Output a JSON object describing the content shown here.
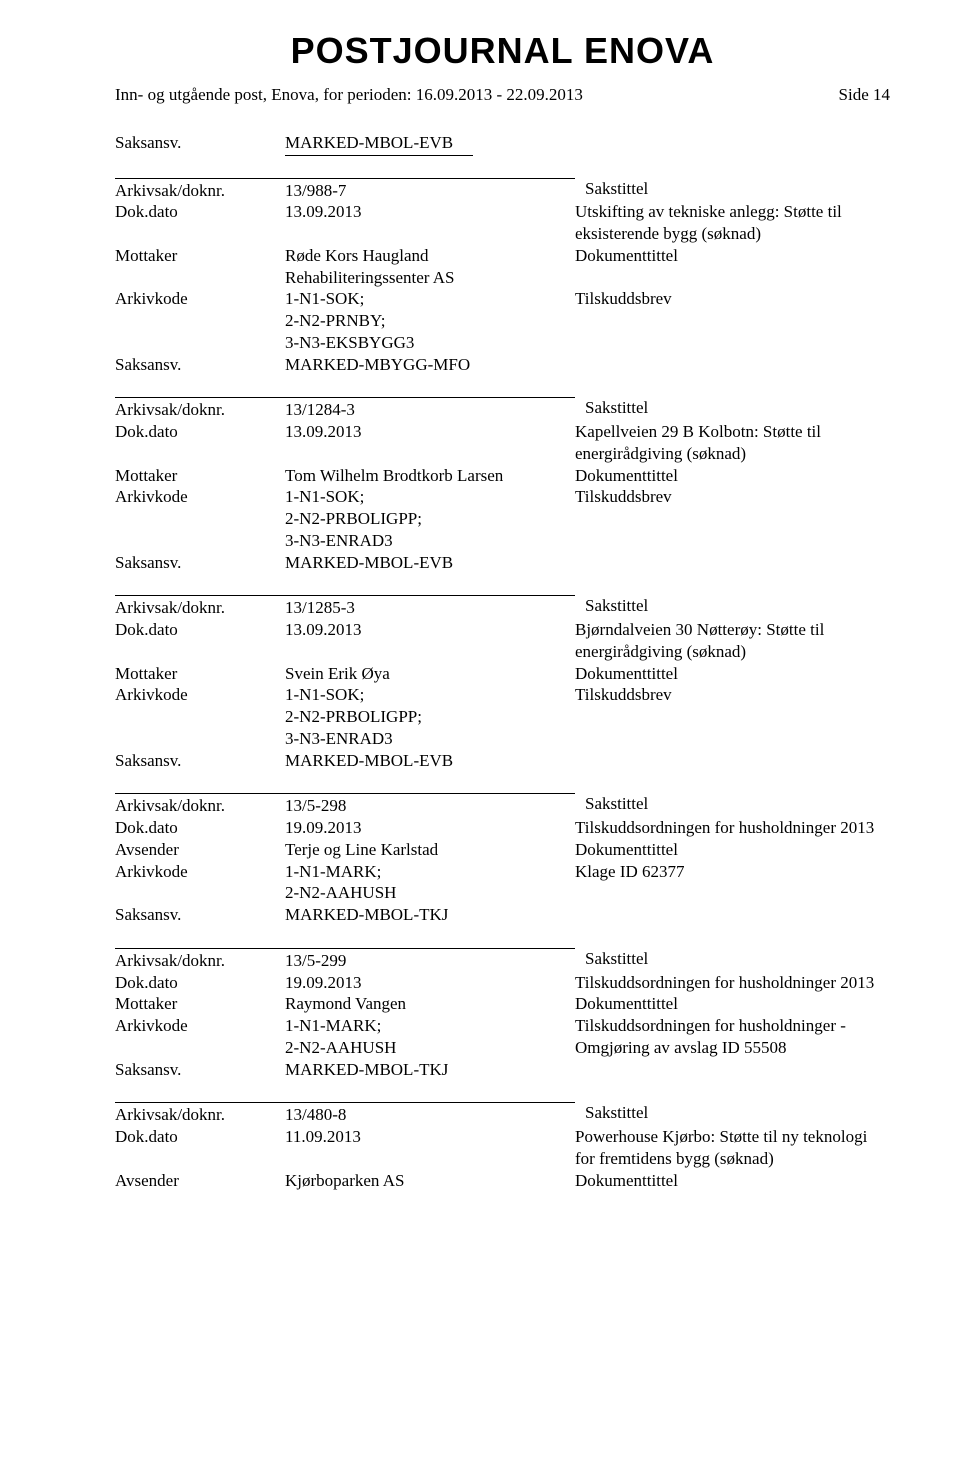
{
  "header": {
    "title": "POSTJOURNAL ENOVA",
    "subtitle": "Inn- og utgående post, Enova, for perioden: 16.09.2013 - 22.09.2013",
    "page_label": "Side 14"
  },
  "labels": {
    "saksansv": "Saksansv.",
    "arkivsak": "Arkivsak/doknr.",
    "dokdato": "Dok.dato",
    "mottaker": "Mottaker",
    "avsender": "Avsender",
    "arkivkode": "Arkivkode",
    "sakstittel": "Sakstittel",
    "dokumenttittel": "Dokumenttittel"
  },
  "carry": {
    "saksansv": "MARKED-MBOL-EVB"
  },
  "records": [
    {
      "arkivsak": "13/988-7",
      "dokdato": "13.09.2013",
      "party_label": "Mottaker",
      "party": "Røde Kors Haugland Rehabiliteringssenter AS",
      "arkivkode": "1-N1-SOK;\n2-N2-PRNBY;\n3-N3-EKSBYGG3",
      "saksansv": "MARKED-MBYGG-MFO",
      "sakstittel": "Utskifting av tekniske anlegg: Støtte til eksisterende bygg (søknad)",
      "dokumenttittel": "Tilskuddsbrev"
    },
    {
      "arkivsak": "13/1284-3",
      "dokdato": "13.09.2013",
      "party_label": "Mottaker",
      "party": "Tom Wilhelm Brodtkorb Larsen",
      "arkivkode": "1-N1-SOK;\n2-N2-PRBOLIGPP;\n3-N3-ENRAD3",
      "saksansv": "MARKED-MBOL-EVB",
      "sakstittel": "Kapellveien 29 B Kolbotn: Støtte til energirådgiving (søknad)",
      "dokumenttittel": "Tilskuddsbrev"
    },
    {
      "arkivsak": "13/1285-3",
      "dokdato": "13.09.2013",
      "party_label": "Mottaker",
      "party": "Svein Erik Øya",
      "arkivkode": "1-N1-SOK;\n2-N2-PRBOLIGPP;\n3-N3-ENRAD3",
      "saksansv": "MARKED-MBOL-EVB",
      "sakstittel": "Bjørndalveien 30 Nøtterøy: Støtte til energirådgiving (søknad)",
      "dokumenttittel": "Tilskuddsbrev"
    },
    {
      "arkivsak": "13/5-298",
      "dokdato": "19.09.2013",
      "party_label": "Avsender",
      "party": "Terje og Line Karlstad",
      "arkivkode": "1-N1-MARK;\n2-N2-AAHUSH",
      "saksansv": "MARKED-MBOL-TKJ",
      "sakstittel": "Tilskuddsordningen for husholdninger 2013",
      "dokumenttittel": "Klage ID 62377"
    },
    {
      "arkivsak": "13/5-299",
      "dokdato": "19.09.2013",
      "party_label": "Mottaker",
      "party": "Raymond Vangen",
      "arkivkode": "1-N1-MARK;\n2-N2-AAHUSH",
      "saksansv": "MARKED-MBOL-TKJ",
      "sakstittel": "Tilskuddsordningen for husholdninger 2013",
      "dokumenttittel": "Tilskuddsordningen for husholdninger - Omgjøring av avslag ID 55508"
    },
    {
      "arkivsak": "13/480-8",
      "dokdato": "11.09.2013",
      "party_label": "Avsender",
      "party": "Kjørboparken AS",
      "arkivkode": "",
      "saksansv": "",
      "sakstittel": "Powerhouse Kjørbo: Støtte til ny teknologi for fremtidens bygg (søknad)",
      "dokumenttittel": ""
    }
  ]
}
